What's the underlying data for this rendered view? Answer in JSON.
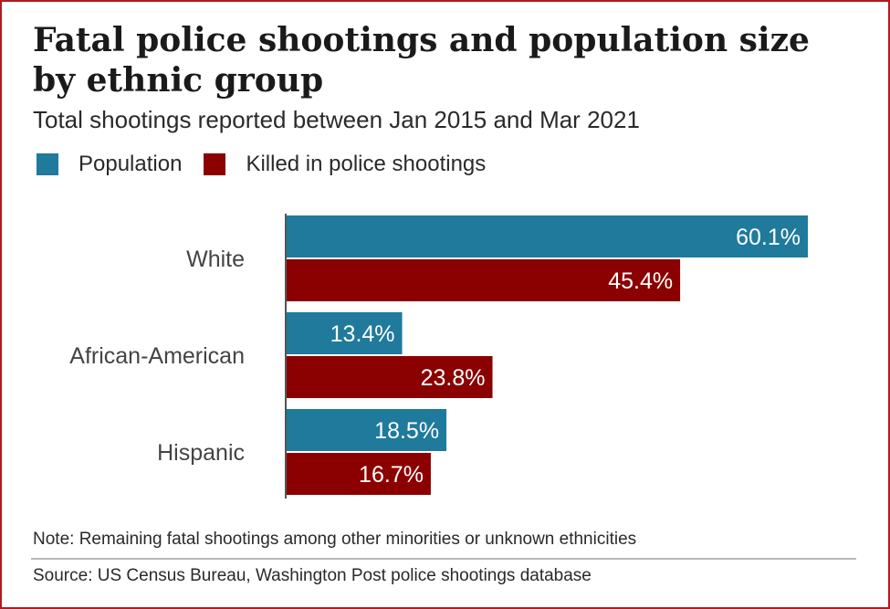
{
  "chart_data": {
    "type": "bar",
    "orientation": "horizontal",
    "title": "Fatal police shootings and population size by ethnic group",
    "subtitle": "Total shootings reported between Jan 2015 and Mar 2021",
    "categories": [
      "White",
      "African-American",
      "Hispanic"
    ],
    "series": [
      {
        "name": "Population",
        "color": "#1f7a9c",
        "values": [
          60.1,
          13.4,
          18.5
        ],
        "labels": [
          "60.1%",
          "13.4%",
          "18.5%"
        ]
      },
      {
        "name": "Killed in police shootings",
        "color": "#8b0000",
        "values": [
          45.4,
          23.8,
          16.7
        ],
        "labels": [
          "45.4%",
          "23.8%",
          "16.7%"
        ]
      }
    ],
    "xlim": [
      0,
      60.1
    ],
    "legend": "top-left",
    "grid": false
  },
  "note": "Note: Remaining fatal shootings among other minorities or unknown ethnicities",
  "source": "Source: US Census Bureau, Washington Post police shootings database"
}
